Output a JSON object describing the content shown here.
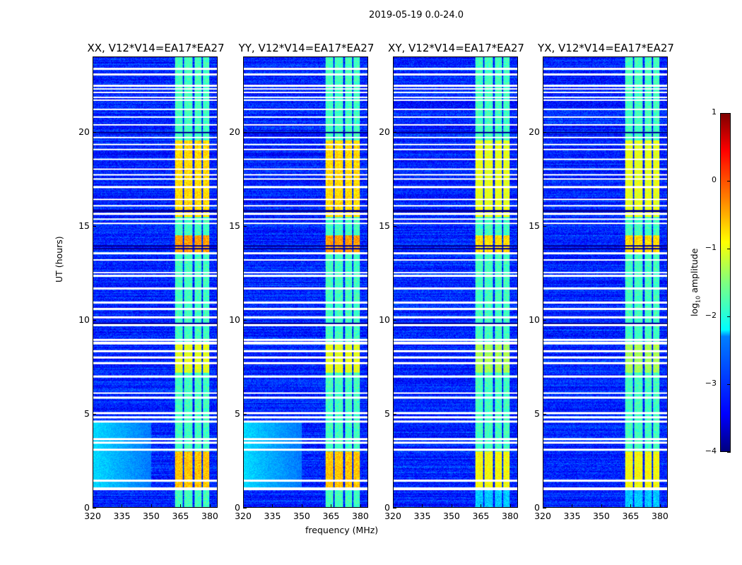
{
  "suptitle": "2019-05-19 0.0-24.0",
  "chart_data": {
    "type": "heatmap",
    "titles": [
      "XX, V12*V14=EA17*EA27",
      "YY, V12*V14=EA17*EA27",
      "XY, V12*V14=EA17*EA27",
      "YX, V12*V14=EA17*EA27"
    ],
    "xlabel": "frequency (MHz)",
    "ylabel": "UT (hours)",
    "xlim": [
      320,
      384
    ],
    "ylim": [
      0,
      24
    ],
    "xticks": [
      320,
      335,
      350,
      365,
      380
    ],
    "yticks": [
      0,
      5,
      10,
      15,
      20
    ],
    "colorbar": {
      "label_main": "log",
      "label_sub": "10",
      "label_rest": " amplitude",
      "range": [
        -4,
        1
      ],
      "ticks": [
        -4,
        -3,
        -2,
        -1,
        0,
        1
      ],
      "tick_labels": [
        "−4",
        "−3",
        "−2",
        "−1",
        "0",
        "1"
      ],
      "colormap": "jet"
    },
    "background_level": -3.2,
    "sub_bands_mhz": [
      [
        362,
        366.2
      ],
      [
        367,
        371.3
      ],
      [
        372.2,
        375.7
      ],
      [
        376.6,
        380
      ]
    ],
    "band_level": -1.8,
    "bright_periods_hours": [
      [
        1.0,
        3.0,
        -0.6
      ],
      [
        7.2,
        8.8,
        -1.0
      ],
      [
        13.5,
        14.5,
        -0.4
      ],
      [
        15.5,
        19.6,
        -0.7
      ]
    ],
    "low_freq_glow": {
      "mhz": [
        320,
        350
      ],
      "hours": [
        1.0,
        4.6
      ],
      "level": -2.3,
      "panels": [
        0,
        1
      ]
    },
    "flagged_hours": [
      0.98,
      1.02,
      1.43,
      3.08,
      3.45,
      3.64,
      4.58,
      4.8,
      5.03,
      5.85,
      6.1,
      6.98,
      7.0,
      7.7,
      8.0,
      8.33,
      8.76,
      8.8,
      8.93,
      9.72,
      10.13,
      10.58,
      10.92,
      11.67,
      12.35,
      12.53,
      13.2,
      13.55,
      15.16,
      15.38,
      15.65,
      16.1,
      16.43,
      17.1,
      17.52,
      17.75,
      18.05,
      18.57,
      19.1,
      19.36,
      19.74,
      20.41,
      20.83,
      21.24,
      21.73,
      21.88,
      22.14,
      22.33,
      22.51,
      23.11,
      23.41
    ],
    "dark_hours": [
      9.8,
      13.8,
      13.95,
      15.8,
      20.0
    ]
  }
}
